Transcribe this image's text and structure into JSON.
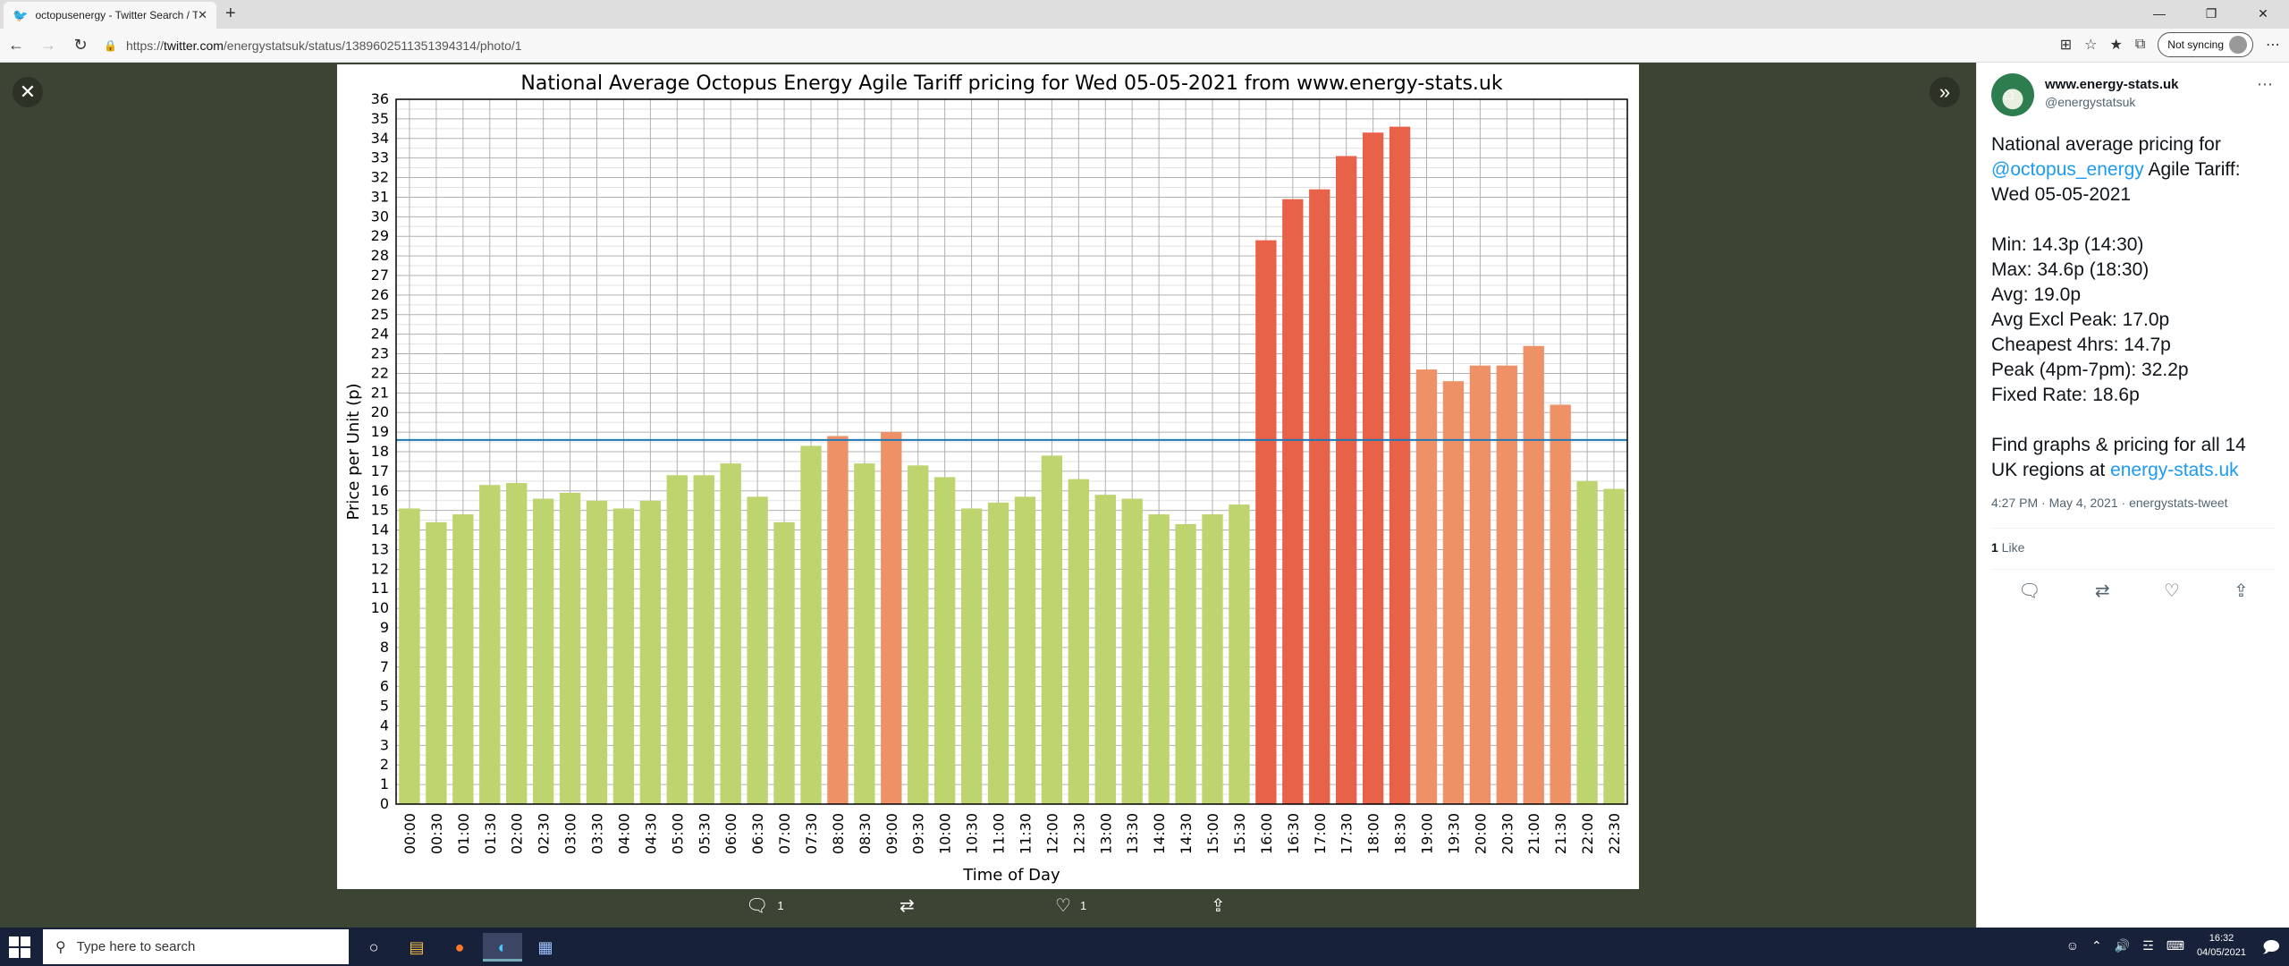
{
  "browser": {
    "tab_title": "octopusenergy - Twitter Search / T",
    "url_prefix": "https://",
    "url_domain": "twitter.com",
    "url_path": "/energystatsuk/status/1389602511351394314/photo/1",
    "sync_label": "Not syncing"
  },
  "viewer": {
    "actions": {
      "reply_count": "1",
      "like_count": "1"
    }
  },
  "tweet": {
    "name": "www.energy-stats.uk",
    "handle": "@energystatsuk",
    "intro_1": "National average pricing for",
    "mention": "@octopus_energy",
    "intro_2": " Agile Tariff:",
    "intro_3": "Wed 05-05-2021",
    "stats": [
      "Min: 14.3p (14:30)",
      "Max: 34.6p (18:30)",
      "Avg: 19.0p",
      "Avg Excl Peak: 17.0p",
      "Cheapest 4hrs: 14.7p",
      "Peak (4pm-7pm): 32.2p",
      "Fixed Rate: 18.6p"
    ],
    "footer_1": "Find graphs & pricing for all 14",
    "footer_2": "UK regions at ",
    "footer_link": "energy-stats.uk",
    "meta": "4:27 PM · May 4, 2021 · energystats-tweet",
    "likes_count": "1",
    "likes_label": " Like"
  },
  "taskbar": {
    "search_placeholder": "Type here to search",
    "time": "16:32",
    "date": "04/05/2021"
  },
  "chart_data": {
    "type": "bar",
    "title": "National Average Octopus Energy Agile Tariff pricing for Wed 05-05-2021 from www.energy-stats.uk",
    "xlabel": "Time of Day",
    "ylabel": "Price per Unit (p)",
    "ylim": [
      0,
      36
    ],
    "grid": true,
    "reference_line": {
      "value": 18.6,
      "color": "#1f77b4"
    },
    "colors": {
      "low": "#bdd46f",
      "mid": "#ee9166",
      "high": "#e8624a"
    },
    "categories": [
      "00:00",
      "00:30",
      "01:00",
      "01:30",
      "02:00",
      "02:30",
      "03:00",
      "03:30",
      "04:00",
      "04:30",
      "05:00",
      "05:30",
      "06:00",
      "06:30",
      "07:00",
      "07:30",
      "08:00",
      "08:30",
      "09:00",
      "09:30",
      "10:00",
      "10:30",
      "11:00",
      "11:30",
      "12:00",
      "12:30",
      "13:00",
      "13:30",
      "14:00",
      "14:30",
      "15:00",
      "15:30",
      "16:00",
      "16:30",
      "17:00",
      "17:30",
      "18:00",
      "18:30",
      "19:00",
      "19:30",
      "20:00",
      "20:30",
      "21:00",
      "21:30",
      "22:00",
      "22:30"
    ],
    "values": [
      15.1,
      14.4,
      14.8,
      16.3,
      16.4,
      15.6,
      15.9,
      15.5,
      15.1,
      15.5,
      16.8,
      16.8,
      17.4,
      15.7,
      14.4,
      18.3,
      18.8,
      17.4,
      19.0,
      17.3,
      16.7,
      15.1,
      15.4,
      15.7,
      17.8,
      16.6,
      15.8,
      15.6,
      14.8,
      14.3,
      14.8,
      15.3,
      28.8,
      30.9,
      31.4,
      33.1,
      34.3,
      34.6,
      22.2,
      21.6,
      22.4,
      22.4,
      23.4,
      20.4,
      16.5,
      16.1
    ],
    "bar_color_class": [
      "low",
      "low",
      "low",
      "low",
      "low",
      "low",
      "low",
      "low",
      "low",
      "low",
      "low",
      "low",
      "low",
      "low",
      "low",
      "low",
      "mid",
      "low",
      "mid",
      "low",
      "low",
      "low",
      "low",
      "low",
      "low",
      "low",
      "low",
      "low",
      "low",
      "low",
      "low",
      "low",
      "high",
      "high",
      "high",
      "high",
      "high",
      "high",
      "mid",
      "mid",
      "mid",
      "mid",
      "mid",
      "mid",
      "low",
      "low"
    ],
    "x_tick_labels": [
      "00:00",
      "00:30",
      "01:00",
      "01:30",
      "02:00",
      "02:30",
      "03:00",
      "03:30",
      "04:00",
      "04:30",
      "05:00",
      "05:30",
      "06:00",
      "06:30",
      "07:00",
      "07:30",
      "08:00",
      "08:30",
      "09:00",
      "09:30",
      "10:00",
      "10:30",
      "11:00",
      "11:30",
      "12:00",
      "12:30",
      "13:00",
      "13:30",
      "14:00",
      "14:30",
      "15:00",
      "15:30",
      "16:00",
      "16:30",
      "17:00",
      "17:30",
      "18:00",
      "18:30",
      "19:00",
      "19:30",
      "20:00",
      "20:30",
      "21:00",
      "21:30",
      "22:00",
      "22:30"
    ]
  }
}
